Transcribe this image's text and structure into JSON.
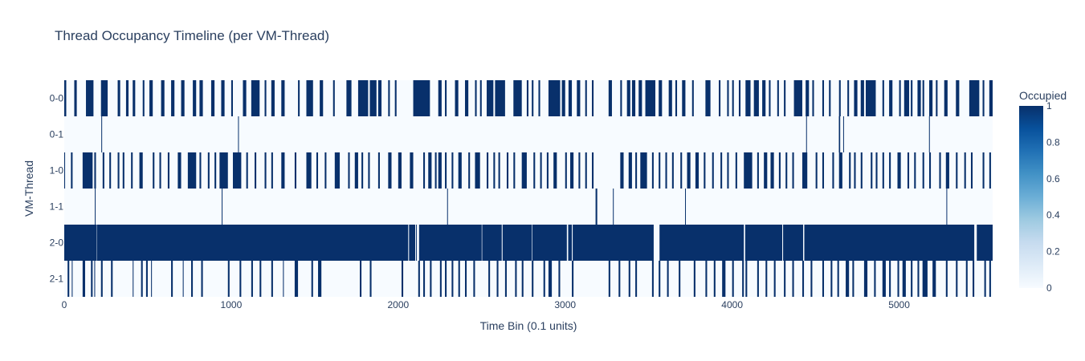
{
  "chart_data": {
    "type": "heatmap",
    "title": "Thread Occupancy Timeline (per VM-Thread)",
    "xlabel": "Time Bin (0.1 units)",
    "ylabel": "VM-Thread",
    "xlim": [
      0,
      5560
    ],
    "x_ticks": [
      "0",
      "1000",
      "2000",
      "3000",
      "4000",
      "5000"
    ],
    "y_categories": [
      "0-0",
      "0-1",
      "1-0",
      "1-1",
      "2-0",
      "2-1"
    ],
    "z_range": [
      0,
      1
    ],
    "colorscale": [
      "#f7fbff",
      "#deebf7",
      "#c6dbef",
      "#9ecae1",
      "#6baed6",
      "#4292c6",
      "#2171b5",
      "#08519c",
      "#08306b"
    ],
    "colorbar": {
      "title": "Occupied",
      "ticks": [
        "0",
        "0.2",
        "0.4",
        "0.6",
        "0.8",
        "1"
      ]
    },
    "occupied_intervals": {
      "0-0": [
        [
          0,
          12
        ],
        [
          60,
          75
        ],
        [
          130,
          175
        ],
        [
          220,
          260
        ],
        [
          320,
          335
        ],
        [
          370,
          385
        ],
        [
          410,
          425
        ],
        [
          470,
          480
        ],
        [
          510,
          530
        ],
        [
          580,
          600
        ],
        [
          640,
          660
        ],
        [
          700,
          720
        ],
        [
          770,
          790
        ],
        [
          810,
          830
        ],
        [
          880,
          900
        ],
        [
          940,
          960
        ],
        [
          1000,
          1010
        ],
        [
          1070,
          1090
        ],
        [
          1120,
          1170
        ],
        [
          1200,
          1210
        ],
        [
          1240,
          1260
        ],
        [
          1300,
          1320
        ],
        [
          1400,
          1410
        ],
        [
          1450,
          1490
        ],
        [
          1530,
          1550
        ],
        [
          1610,
          1620
        ],
        [
          1690,
          1720
        ],
        [
          1760,
          1820
        ],
        [
          1830,
          1870
        ],
        [
          1880,
          1900
        ],
        [
          1940,
          1950
        ],
        [
          1980,
          1990
        ],
        [
          2090,
          2190
        ],
        [
          2240,
          2260
        ],
        [
          2280,
          2290
        ],
        [
          2340,
          2360
        ],
        [
          2400,
          2420
        ],
        [
          2460,
          2470
        ],
        [
          2490,
          2500
        ],
        [
          2530,
          2570
        ],
        [
          2580,
          2640
        ],
        [
          2690,
          2740
        ],
        [
          2770,
          2780
        ],
        [
          2800,
          2810
        ],
        [
          2840,
          2850
        ],
        [
          2900,
          2970
        ],
        [
          2980,
          3000
        ],
        [
          3020,
          3040
        ],
        [
          3070,
          3090
        ],
        [
          3120,
          3130
        ],
        [
          3160,
          3170
        ],
        [
          3260,
          3280
        ],
        [
          3330,
          3340
        ],
        [
          3370,
          3390
        ],
        [
          3400,
          3420
        ],
        [
          3440,
          3460
        ],
        [
          3480,
          3540
        ],
        [
          3560,
          3580
        ],
        [
          3620,
          3640
        ],
        [
          3660,
          3670
        ],
        [
          3700,
          3720
        ],
        [
          3760,
          3770
        ],
        [
          3840,
          3870
        ],
        [
          3920,
          3930
        ],
        [
          3970,
          3980
        ],
        [
          4000,
          4010
        ],
        [
          4040,
          4050
        ],
        [
          4080,
          4110
        ],
        [
          4130,
          4160
        ],
        [
          4180,
          4200
        ],
        [
          4220,
          4230
        ],
        [
          4270,
          4280
        ],
        [
          4310,
          4320
        ],
        [
          4370,
          4420
        ],
        [
          4440,
          4460
        ],
        [
          4480,
          4490
        ],
        [
          4540,
          4550
        ],
        [
          4580,
          4590
        ],
        [
          4640,
          4650
        ],
        [
          4690,
          4700
        ],
        [
          4730,
          4750
        ],
        [
          4770,
          4790
        ],
        [
          4800,
          4860
        ],
        [
          4900,
          4910
        ],
        [
          4940,
          4960
        ],
        [
          5000,
          5010
        ],
        [
          5030,
          5060
        ],
        [
          5070,
          5080
        ],
        [
          5110,
          5130
        ],
        [
          5140,
          5150
        ],
        [
          5180,
          5200
        ],
        [
          5220,
          5230
        ],
        [
          5270,
          5290
        ],
        [
          5340,
          5360
        ],
        [
          5420,
          5480
        ],
        [
          5500,
          5510
        ],
        [
          5540,
          5560
        ]
      ],
      "0-1": [
        [
          222,
          226
        ],
        [
          1041,
          1045
        ],
        [
          4443,
          4447
        ],
        [
          4639,
          4647
        ],
        [
          4665,
          4669
        ],
        [
          5179,
          5183
        ]
      ],
      "1-0": [
        [
          0,
          5
        ],
        [
          40,
          50
        ],
        [
          110,
          170
        ],
        [
          180,
          190
        ],
        [
          230,
          240
        ],
        [
          270,
          280
        ],
        [
          320,
          330
        ],
        [
          350,
          360
        ],
        [
          400,
          410
        ],
        [
          450,
          470
        ],
        [
          530,
          540
        ],
        [
          570,
          580
        ],
        [
          620,
          630
        ],
        [
          680,
          700
        ],
        [
          740,
          790
        ],
        [
          810,
          820
        ],
        [
          860,
          870
        ],
        [
          900,
          910
        ],
        [
          930,
          980
        ],
        [
          1010,
          1060
        ],
        [
          1090,
          1100
        ],
        [
          1140,
          1150
        ],
        [
          1200,
          1210
        ],
        [
          1240,
          1250
        ],
        [
          1300,
          1320
        ],
        [
          1380,
          1390
        ],
        [
          1450,
          1480
        ],
        [
          1510,
          1520
        ],
        [
          1560,
          1570
        ],
        [
          1620,
          1650
        ],
        [
          1700,
          1710
        ],
        [
          1740,
          1760
        ],
        [
          1780,
          1790
        ],
        [
          1820,
          1830
        ],
        [
          1880,
          1890
        ],
        [
          1940,
          1960
        ],
        [
          2000,
          2020
        ],
        [
          2070,
          2090
        ],
        [
          2150,
          2160
        ],
        [
          2180,
          2200
        ],
        [
          2220,
          2230
        ],
        [
          2240,
          2260
        ],
        [
          2280,
          2290
        ],
        [
          2320,
          2330
        ],
        [
          2360,
          2380
        ],
        [
          2420,
          2430
        ],
        [
          2460,
          2490
        ],
        [
          2530,
          2540
        ],
        [
          2570,
          2580
        ],
        [
          2600,
          2610
        ],
        [
          2650,
          2660
        ],
        [
          2690,
          2700
        ],
        [
          2740,
          2770
        ],
        [
          2810,
          2820
        ],
        [
          2850,
          2860
        ],
        [
          2890,
          2900
        ],
        [
          2930,
          2950
        ],
        [
          3000,
          3010
        ],
        [
          3030,
          3050
        ],
        [
          3080,
          3090
        ],
        [
          3120,
          3130
        ],
        [
          3160,
          3170
        ],
        [
          3330,
          3350
        ],
        [
          3380,
          3400
        ],
        [
          3420,
          3430
        ],
        [
          3450,
          3490
        ],
        [
          3520,
          3530
        ],
        [
          3560,
          3570
        ],
        [
          3600,
          3610
        ],
        [
          3640,
          3650
        ],
        [
          3690,
          3700
        ],
        [
          3730,
          3750
        ],
        [
          3780,
          3800
        ],
        [
          3830,
          3840
        ],
        [
          3880,
          3890
        ],
        [
          3930,
          3940
        ],
        [
          3970,
          3980
        ],
        [
          4020,
          4030
        ],
        [
          4070,
          4120
        ],
        [
          4150,
          4160
        ],
        [
          4190,
          4210
        ],
        [
          4230,
          4250
        ],
        [
          4280,
          4290
        ],
        [
          4320,
          4330
        ],
        [
          4360,
          4370
        ],
        [
          4420,
          4450
        ],
        [
          4500,
          4510
        ],
        [
          4540,
          4550
        ],
        [
          4600,
          4610
        ],
        [
          4640,
          4660
        ],
        [
          4700,
          4710
        ],
        [
          4730,
          4740
        ],
        [
          4770,
          4780
        ],
        [
          4830,
          4840
        ],
        [
          4860,
          4870
        ],
        [
          4900,
          4910
        ],
        [
          4940,
          4950
        ],
        [
          4990,
          5010
        ],
        [
          5050,
          5060
        ],
        [
          5090,
          5100
        ],
        [
          5140,
          5150
        ],
        [
          5180,
          5190
        ],
        [
          5240,
          5250
        ],
        [
          5280,
          5300
        ],
        [
          5340,
          5350
        ],
        [
          5390,
          5400
        ],
        [
          5430,
          5440
        ],
        [
          5500,
          5510
        ],
        [
          5540,
          5550
        ]
      ],
      "1-1": [
        [
          183,
          187
        ],
        [
          943,
          947
        ],
        [
          2293,
          2297
        ],
        [
          3182,
          3192
        ],
        [
          3286,
          3290
        ],
        [
          3718,
          3722
        ],
        [
          5283,
          5287
        ]
      ],
      "2-0": [
        [
          0,
          195
        ],
        [
          197,
          2060
        ],
        [
          2065,
          2102
        ],
        [
          2107,
          2110
        ],
        [
          2125,
          2500
        ],
        [
          2503,
          2620
        ],
        [
          2625,
          2800
        ],
        [
          2803,
          3010
        ],
        [
          3018,
          3040
        ],
        [
          3045,
          3530
        ],
        [
          3565,
          4070
        ],
        [
          4078,
          4300
        ],
        [
          4305,
          4425
        ],
        [
          4432,
          5450
        ],
        [
          5465,
          5560
        ]
      ],
      "2-1": [
        [
          20,
          30
        ],
        [
          45,
          50
        ],
        [
          110,
          125
        ],
        [
          160,
          170
        ],
        [
          180,
          185
        ],
        [
          220,
          230
        ],
        [
          280,
          290
        ],
        [
          410,
          415
        ],
        [
          460,
          470
        ],
        [
          490,
          500
        ],
        [
          520,
          525
        ],
        [
          640,
          650
        ],
        [
          710,
          715
        ],
        [
          760,
          770
        ],
        [
          820,
          830
        ],
        [
          980,
          990
        ],
        [
          1050,
          1060
        ],
        [
          1120,
          1130
        ],
        [
          1170,
          1180
        ],
        [
          1240,
          1250
        ],
        [
          1310,
          1315
        ],
        [
          1380,
          1400
        ],
        [
          1480,
          1490
        ],
        [
          1520,
          1540
        ],
        [
          1770,
          1780
        ],
        [
          1830,
          1840
        ],
        [
          2020,
          2030
        ],
        [
          2120,
          2130
        ],
        [
          2150,
          2160
        ],
        [
          2190,
          2200
        ],
        [
          2250,
          2260
        ],
        [
          2280,
          2290
        ],
        [
          2320,
          2330
        ],
        [
          2360,
          2370
        ],
        [
          2400,
          2410
        ],
        [
          2450,
          2460
        ],
        [
          2540,
          2550
        ],
        [
          2590,
          2600
        ],
        [
          2640,
          2650
        ],
        [
          2700,
          2710
        ],
        [
          2740,
          2750
        ],
        [
          2800,
          2810
        ],
        [
          2870,
          2880
        ],
        [
          2900,
          2920
        ],
        [
          2960,
          2970
        ],
        [
          3040,
          3050
        ],
        [
          3260,
          3270
        ],
        [
          3320,
          3330
        ],
        [
          3380,
          3390
        ],
        [
          3420,
          3430
        ],
        [
          3520,
          3530
        ],
        [
          3560,
          3570
        ],
        [
          3610,
          3620
        ],
        [
          3680,
          3690
        ],
        [
          3770,
          3780
        ],
        [
          3840,
          3850
        ],
        [
          3890,
          3900
        ],
        [
          3940,
          3960
        ],
        [
          4000,
          4010
        ],
        [
          4060,
          4070
        ],
        [
          4080,
          4090
        ],
        [
          4150,
          4160
        ],
        [
          4200,
          4210
        ],
        [
          4250,
          4260
        ],
        [
          4310,
          4320
        ],
        [
          4360,
          4370
        ],
        [
          4420,
          4430
        ],
        [
          4470,
          4480
        ],
        [
          4540,
          4550
        ],
        [
          4590,
          4600
        ],
        [
          4630,
          4640
        ],
        [
          4680,
          4700
        ],
        [
          4720,
          4730
        ],
        [
          4790,
          4810
        ],
        [
          4850,
          4860
        ],
        [
          4900,
          4920
        ],
        [
          4940,
          4950
        ],
        [
          4990,
          5000
        ],
        [
          5020,
          5040
        ],
        [
          5070,
          5080
        ],
        [
          5110,
          5120
        ],
        [
          5140,
          5170
        ],
        [
          5200,
          5220
        ],
        [
          5280,
          5290
        ],
        [
          5340,
          5350
        ],
        [
          5400,
          5410
        ],
        [
          5440,
          5450
        ],
        [
          5510,
          5520
        ],
        [
          5540,
          5550
        ]
      ]
    }
  }
}
